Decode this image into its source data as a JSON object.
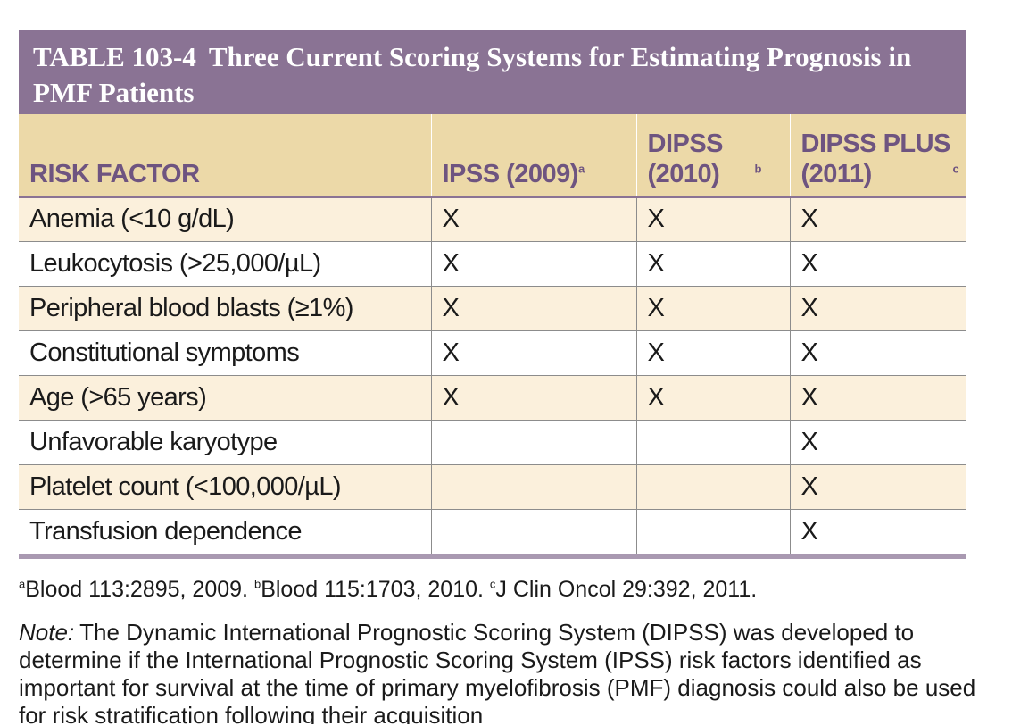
{
  "table": {
    "number": "TABLE 103-4",
    "title": "Three Current Scoring Systems for Estimating Prognosis in PMF Patients",
    "headers": [
      {
        "label": "RISK FACTOR",
        "sup": ""
      },
      {
        "label": "IPSS (2009)",
        "sup": "a"
      },
      {
        "label": "DIPSS (2010)",
        "sup": "b"
      },
      {
        "label": "DIPSS PLUS (2011)",
        "sup": "c"
      }
    ],
    "rows": [
      {
        "factor": "Anemia (<10 g/dL)",
        "ipss": "X",
        "dipss": "X",
        "dipss_plus": "X"
      },
      {
        "factor": "Leukocytosis (>25,000/µL)",
        "ipss": "X",
        "dipss": "X",
        "dipss_plus": "X"
      },
      {
        "factor": "Peripheral blood blasts (≥1%)",
        "ipss": "X",
        "dipss": "X",
        "dipss_plus": "X"
      },
      {
        "factor": "Constitutional symptoms",
        "ipss": "X",
        "dipss": "X",
        "dipss_plus": "X"
      },
      {
        "factor": "Age (>65 years)",
        "ipss": "X",
        "dipss": "X",
        "dipss_plus": "X"
      },
      {
        "factor": "Unfavorable karyotype",
        "ipss": "",
        "dipss": "",
        "dipss_plus": "X"
      },
      {
        "factor": "Platelet count (<100,000/µL)",
        "ipss": "",
        "dipss": "",
        "dipss_plus": "X"
      },
      {
        "factor": "Transfusion dependence",
        "ipss": "",
        "dipss": "",
        "dipss_plus": "X"
      }
    ]
  },
  "footnotes": [
    {
      "sup": "a",
      "text": "Blood 113:2895, 2009."
    },
    {
      "sup": "b",
      "text": "Blood 115:1703, 2010."
    },
    {
      "sup": "c",
      "text": "J Clin Oncol 29:392, 2011."
    }
  ],
  "note": {
    "label": "Note:",
    "text": "The Dynamic International Prognostic Scoring System (DIPSS) was developed to determine if the International Prognostic Scoring System (IPSS) risk factors identified as important for survival at the time of primary myelofibrosis (PMF) diagnosis could also be used for risk stratification following their acquisition"
  },
  "colors": {
    "title_bg": "#8a7394",
    "header_bg": "#ecd9a8",
    "header_text": "#6e5480",
    "row_tint": "#fbf0dc"
  }
}
